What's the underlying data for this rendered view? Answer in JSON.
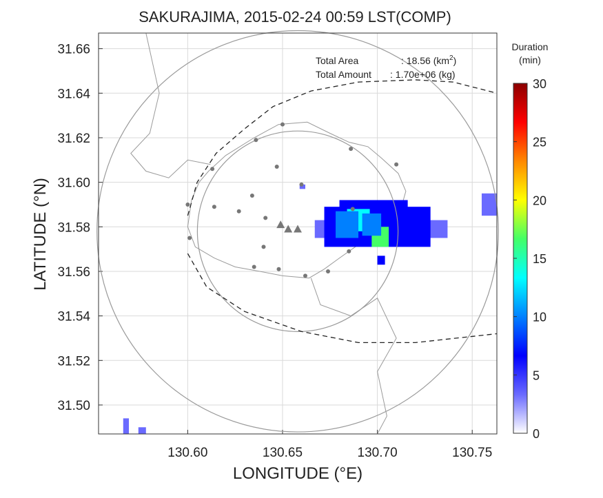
{
  "chart_data": {
    "type": "heatmap",
    "title": "SAKURAJIMA, 2015-02-24 00:59 LST(COMP)",
    "xlabel": "LONGITUDE (°E)",
    "ylabel": "LATITUDE (°N)",
    "xlim": [
      130.553,
      130.763
    ],
    "ylim": [
      31.487,
      31.667
    ],
    "xticks": [
      130.6,
      130.65,
      130.7,
      130.75
    ],
    "xtick_labels": [
      "130.60",
      "130.65",
      "130.70",
      "130.75"
    ],
    "yticks": [
      31.5,
      31.52,
      31.54,
      31.56,
      31.58,
      31.6,
      31.62,
      31.64,
      31.66
    ],
    "ytick_labels": [
      "31.50",
      "31.52",
      "31.54",
      "31.56",
      "31.58",
      "31.60",
      "31.62",
      "31.64",
      "31.66"
    ],
    "grid": true,
    "annotations": {
      "area_label": "Total Area",
      "area_value": ": 18.56 (km",
      "area_sup": "2",
      "area_close": ")",
      "amount_label": "Total Amount",
      "amount_value": ": 1.70e+06 (kg)"
    },
    "colorbar": {
      "title_line1": "Duration",
      "title_line2": "(min)",
      "range": [
        0,
        30
      ],
      "ticks": [
        0,
        5,
        10,
        15,
        20,
        25,
        30
      ],
      "tick_labels": [
        "0",
        "5",
        "10",
        "15",
        "20",
        "25",
        "30"
      ],
      "colors": [
        "#ffffff",
        "#6a6aff",
        "#0000ff",
        "#0080ff",
        "#00ffff",
        "#44ff66",
        "#ffff00",
        "#ff8800",
        "#ff0000",
        "#8b0000"
      ]
    },
    "center": {
      "lon": 130.658,
      "lat": 31.578
    },
    "range_rings_km": [
      5,
      10
    ],
    "stations": [
      [
        130.65,
        31.626
      ],
      [
        130.636,
        31.619
      ],
      [
        130.686,
        31.615
      ],
      [
        130.613,
        31.606
      ],
      [
        130.647,
        31.607
      ],
      [
        130.66,
        31.599
      ],
      [
        130.71,
        31.608
      ],
      [
        130.6,
        31.59
      ],
      [
        130.614,
        31.589
      ],
      [
        130.634,
        31.594
      ],
      [
        130.627,
        31.587
      ],
      [
        130.641,
        31.584
      ],
      [
        130.687,
        31.588
      ],
      [
        130.601,
        31.575
      ],
      [
        130.64,
        31.571
      ],
      [
        130.635,
        31.562
      ],
      [
        130.648,
        31.561
      ],
      [
        130.662,
        31.558
      ],
      [
        130.674,
        31.56
      ],
      [
        130.685,
        31.569
      ]
    ],
    "vents": [
      [
        130.649,
        31.581
      ],
      [
        130.653,
        31.579
      ],
      [
        130.658,
        31.579
      ]
    ],
    "cells": [
      {
        "lon": 130.667,
        "lat": 31.583,
        "lon2": 130.737,
        "lat2": 31.575,
        "v": 4
      },
      {
        "lon": 130.672,
        "lat": 31.589,
        "lon2": 130.728,
        "lat2": 31.571,
        "v": 5
      },
      {
        "lon": 130.68,
        "lat": 31.592,
        "lon2": 130.716,
        "lat2": 31.574,
        "v": 6
      },
      {
        "lon": 130.684,
        "lat": 31.588,
        "lon2": 130.696,
        "lat2": 31.578,
        "v": 14
      },
      {
        "lon": 130.697,
        "lat": 31.58,
        "lon2": 130.706,
        "lat2": 31.571,
        "v": 15
      },
      {
        "lon": 130.678,
        "lat": 31.587,
        "lon2": 130.69,
        "lat2": 31.575,
        "v": 11
      },
      {
        "lon": 130.692,
        "lat": 31.586,
        "lon2": 130.702,
        "lat2": 31.576,
        "v": 9
      },
      {
        "lon": 130.7,
        "lat": 31.567,
        "lon2": 130.704,
        "lat2": 31.563,
        "v": 5
      },
      {
        "lon": 130.659,
        "lat": 31.599,
        "lon2": 130.662,
        "lat2": 31.597,
        "v": 3
      },
      {
        "lon": 130.755,
        "lat": 31.595,
        "lon2": 130.763,
        "lat2": 31.585,
        "v": 2
      },
      {
        "lon": 130.566,
        "lat": 31.494,
        "lon2": 130.569,
        "lat2": 31.487,
        "v": 2
      },
      {
        "lon": 130.574,
        "lat": 31.49,
        "lon2": 130.578,
        "lat2": 31.487,
        "v": 2
      }
    ]
  }
}
